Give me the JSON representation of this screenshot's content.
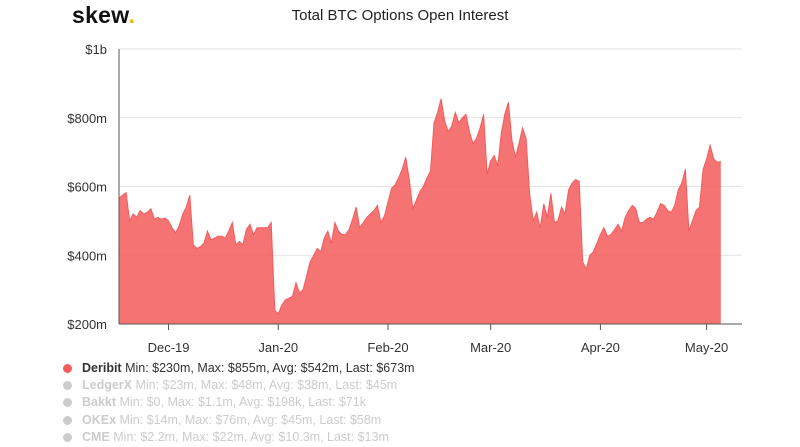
{
  "brand": {
    "logo_text": "skew",
    "logo_dot": ".",
    "dot_color": "#f0b400"
  },
  "chart_data": {
    "type": "area",
    "title": "Total BTC Options Open Interest",
    "xlabel": "",
    "ylabel": "",
    "ylim": [
      200,
      1000
    ],
    "y_ticks": [
      200,
      400,
      600,
      800,
      1000
    ],
    "y_tick_labels": [
      "$200m",
      "$400m",
      "$600m",
      "$800m",
      "$1b"
    ],
    "xlim": [
      "2019-11-17",
      "2020-05-11"
    ],
    "x_ticks": [
      "2019-12-01",
      "2020-01-01",
      "2020-02-01",
      "2020-03-01",
      "2020-04-01",
      "2020-05-01"
    ],
    "x_tick_labels": [
      "Dec-19",
      "Jan-20",
      "Feb-20",
      "Mar-20",
      "Apr-20",
      "May-20"
    ],
    "grid": true,
    "legend_position": "bottom-left",
    "series": [
      {
        "name": "Deribit",
        "color": "#f45b5b",
        "stats": "Min: $230m, Max: $855m, Avg: $542m, Last: $673m",
        "visible": true,
        "points": [
          [
            "2019-11-17",
            565
          ],
          [
            "2019-11-18",
            575
          ],
          [
            "2019-11-19",
            582
          ],
          [
            "2019-11-20",
            500
          ],
          [
            "2019-11-21",
            520
          ],
          [
            "2019-11-22",
            510
          ],
          [
            "2019-11-23",
            530
          ],
          [
            "2019-11-24",
            520
          ],
          [
            "2019-11-25",
            525
          ],
          [
            "2019-11-26",
            535
          ],
          [
            "2019-11-27",
            505
          ],
          [
            "2019-11-28",
            510
          ],
          [
            "2019-11-29",
            505
          ],
          [
            "2019-11-30",
            508
          ],
          [
            "2019-12-01",
            500
          ],
          [
            "2019-12-02",
            480
          ],
          [
            "2019-12-03",
            465
          ],
          [
            "2019-12-04",
            485
          ],
          [
            "2019-12-05",
            520
          ],
          [
            "2019-12-06",
            540
          ],
          [
            "2019-12-07",
            575
          ],
          [
            "2019-12-08",
            430
          ],
          [
            "2019-12-09",
            420
          ],
          [
            "2019-12-10",
            425
          ],
          [
            "2019-12-11",
            435
          ],
          [
            "2019-12-12",
            470
          ],
          [
            "2019-12-13",
            445
          ],
          [
            "2019-12-14",
            450
          ],
          [
            "2019-12-15",
            455
          ],
          [
            "2019-12-16",
            455
          ],
          [
            "2019-12-17",
            450
          ],
          [
            "2019-12-18",
            470
          ],
          [
            "2019-12-19",
            495
          ],
          [
            "2019-12-20",
            430
          ],
          [
            "2019-12-21",
            440
          ],
          [
            "2019-12-22",
            430
          ],
          [
            "2019-12-23",
            475
          ],
          [
            "2019-12-24",
            490
          ],
          [
            "2019-12-25",
            460
          ],
          [
            "2019-12-26",
            480
          ],
          [
            "2019-12-27",
            480
          ],
          [
            "2019-12-28",
            480
          ],
          [
            "2019-12-29",
            480
          ],
          [
            "2019-12-30",
            495
          ],
          [
            "2019-12-31",
            240
          ],
          [
            "2020-01-01",
            230
          ],
          [
            "2020-01-02",
            255
          ],
          [
            "2020-01-03",
            270
          ],
          [
            "2020-01-04",
            275
          ],
          [
            "2020-01-05",
            280
          ],
          [
            "2020-01-06",
            320
          ],
          [
            "2020-01-07",
            290
          ],
          [
            "2020-01-08",
            300
          ],
          [
            "2020-01-09",
            340
          ],
          [
            "2020-01-10",
            380
          ],
          [
            "2020-01-11",
            400
          ],
          [
            "2020-01-12",
            420
          ],
          [
            "2020-01-13",
            410
          ],
          [
            "2020-01-14",
            450
          ],
          [
            "2020-01-15",
            470
          ],
          [
            "2020-01-16",
            435
          ],
          [
            "2020-01-17",
            495
          ],
          [
            "2020-01-18",
            470
          ],
          [
            "2020-01-19",
            460
          ],
          [
            "2020-01-20",
            460
          ],
          [
            "2020-01-21",
            475
          ],
          [
            "2020-01-22",
            505
          ],
          [
            "2020-01-23",
            540
          ],
          [
            "2020-01-24",
            480
          ],
          [
            "2020-01-25",
            495
          ],
          [
            "2020-01-26",
            510
          ],
          [
            "2020-01-27",
            520
          ],
          [
            "2020-01-28",
            530
          ],
          [
            "2020-01-29",
            545
          ],
          [
            "2020-01-30",
            495
          ],
          [
            "2020-01-31",
            515
          ],
          [
            "2020-02-01",
            555
          ],
          [
            "2020-02-02",
            595
          ],
          [
            "2020-02-03",
            605
          ],
          [
            "2020-02-04",
            625
          ],
          [
            "2020-02-05",
            650
          ],
          [
            "2020-02-06",
            685
          ],
          [
            "2020-02-07",
            620
          ],
          [
            "2020-02-08",
            535
          ],
          [
            "2020-02-09",
            560
          ],
          [
            "2020-02-10",
            585
          ],
          [
            "2020-02-11",
            600
          ],
          [
            "2020-02-12",
            625
          ],
          [
            "2020-02-13",
            645
          ],
          [
            "2020-02-14",
            785
          ],
          [
            "2020-02-15",
            815
          ],
          [
            "2020-02-16",
            855
          ],
          [
            "2020-02-17",
            790
          ],
          [
            "2020-02-18",
            760
          ],
          [
            "2020-02-19",
            775
          ],
          [
            "2020-02-20",
            815
          ],
          [
            "2020-02-21",
            785
          ],
          [
            "2020-02-22",
            800
          ],
          [
            "2020-02-23",
            810
          ],
          [
            "2020-02-24",
            760
          ],
          [
            "2020-02-25",
            725
          ],
          [
            "2020-02-26",
            740
          ],
          [
            "2020-02-27",
            770
          ],
          [
            "2020-02-28",
            810
          ],
          [
            "2020-02-29",
            635
          ],
          [
            "2020-03-01",
            675
          ],
          [
            "2020-03-02",
            690
          ],
          [
            "2020-03-03",
            660
          ],
          [
            "2020-03-04",
            755
          ],
          [
            "2020-03-05",
            810
          ],
          [
            "2020-03-06",
            845
          ],
          [
            "2020-03-07",
            735
          ],
          [
            "2020-03-08",
            685
          ],
          [
            "2020-03-09",
            725
          ],
          [
            "2020-03-10",
            770
          ],
          [
            "2020-03-11",
            740
          ],
          [
            "2020-03-12",
            580
          ],
          [
            "2020-03-13",
            500
          ],
          [
            "2020-03-14",
            525
          ],
          [
            "2020-03-15",
            480
          ],
          [
            "2020-03-16",
            550
          ],
          [
            "2020-03-17",
            510
          ],
          [
            "2020-03-18",
            580
          ],
          [
            "2020-03-19",
            495
          ],
          [
            "2020-03-20",
            500
          ],
          [
            "2020-03-21",
            540
          ],
          [
            "2020-03-22",
            520
          ],
          [
            "2020-03-23",
            590
          ],
          [
            "2020-03-24",
            610
          ],
          [
            "2020-03-25",
            620
          ],
          [
            "2020-03-26",
            615
          ],
          [
            "2020-03-27",
            380
          ],
          [
            "2020-03-28",
            360
          ],
          [
            "2020-03-29",
            400
          ],
          [
            "2020-03-30",
            410
          ],
          [
            "2020-03-31",
            435
          ],
          [
            "2020-04-01",
            460
          ],
          [
            "2020-04-02",
            480
          ],
          [
            "2020-04-03",
            455
          ],
          [
            "2020-04-04",
            460
          ],
          [
            "2020-04-05",
            475
          ],
          [
            "2020-04-06",
            490
          ],
          [
            "2020-04-07",
            470
          ],
          [
            "2020-04-08",
            510
          ],
          [
            "2020-04-09",
            530
          ],
          [
            "2020-04-10",
            545
          ],
          [
            "2020-04-11",
            535
          ],
          [
            "2020-04-12",
            495
          ],
          [
            "2020-04-13",
            495
          ],
          [
            "2020-04-14",
            505
          ],
          [
            "2020-04-15",
            510
          ],
          [
            "2020-04-16",
            505
          ],
          [
            "2020-04-17",
            525
          ],
          [
            "2020-04-18",
            550
          ],
          [
            "2020-04-19",
            545
          ],
          [
            "2020-04-20",
            530
          ],
          [
            "2020-04-21",
            525
          ],
          [
            "2020-04-22",
            545
          ],
          [
            "2020-04-23",
            590
          ],
          [
            "2020-04-24",
            610
          ],
          [
            "2020-04-25",
            650
          ],
          [
            "2020-04-26",
            470
          ],
          [
            "2020-04-27",
            500
          ],
          [
            "2020-04-28",
            530
          ],
          [
            "2020-04-29",
            540
          ],
          [
            "2020-04-30",
            650
          ],
          [
            "2020-05-01",
            680
          ],
          [
            "2020-05-02",
            720
          ],
          [
            "2020-05-03",
            680
          ],
          [
            "2020-05-04",
            670
          ],
          [
            "2020-05-05",
            673
          ]
        ]
      },
      {
        "name": "LedgerX",
        "color": "#c8c8c8",
        "stats": "Min: $23m, Max: $48m, Avg: $38m, Last: $45m",
        "visible": false
      },
      {
        "name": "Bakkt",
        "color": "#c8c8c8",
        "stats": "Min: $0, Max: $1.1m, Avg: $198k, Last: $71k",
        "visible": false
      },
      {
        "name": "OKEx",
        "color": "#c8c8c8",
        "stats": "Min: $14m, Max: $76m, Avg: $45m, Last: $58m",
        "visible": false
      },
      {
        "name": "CME",
        "color": "#c8c8c8",
        "stats": "Min: $2.2m, Max: $22m, Avg: $10.3m, Last: $13m",
        "visible": false
      }
    ]
  }
}
